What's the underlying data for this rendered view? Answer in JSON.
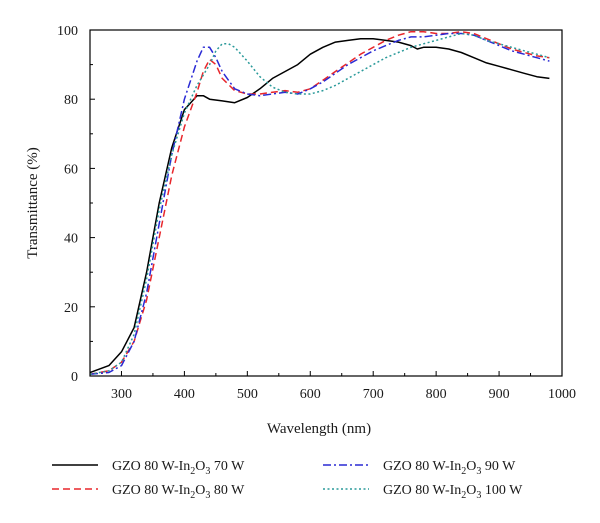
{
  "chart_data": {
    "type": "line",
    "xlabel": "Wavelength (nm)",
    "ylabel": "Transmittance (%)",
    "xlim": [
      250,
      1000
    ],
    "ylim": [
      0,
      100
    ],
    "x_ticks": [
      300,
      400,
      500,
      600,
      700,
      800,
      900,
      1000
    ],
    "y_ticks": [
      0,
      20,
      40,
      60,
      80,
      100
    ],
    "grid": false,
    "legend_placement": "bottom",
    "series": [
      {
        "name": "GZO 80 W-In2O3 70 W",
        "name_parts": {
          "prefix": "GZO 80 W-In",
          "sub1": "2",
          "mid": "O",
          "sub2": "3",
          "suffix": " 70 W"
        },
        "color": "#000000",
        "dash": "solid",
        "x": [
          250,
          280,
          300,
          320,
          340,
          360,
          380,
          400,
          410,
          420,
          430,
          440,
          460,
          480,
          500,
          520,
          540,
          560,
          580,
          600,
          620,
          640,
          660,
          680,
          700,
          720,
          740,
          760,
          770,
          780,
          800,
          820,
          840,
          860,
          880,
          900,
          920,
          940,
          960,
          980
        ],
        "y": [
          1,
          3,
          7,
          14,
          30,
          50,
          66,
          77,
          79,
          81,
          81,
          80,
          79.5,
          79,
          80.5,
          83,
          86,
          88,
          90,
          93,
          95,
          96.5,
          97,
          97.5,
          97.5,
          97,
          96.5,
          95.5,
          94.5,
          95,
          95,
          94.5,
          93.5,
          92,
          90.5,
          89.5,
          88.5,
          87.5,
          86.5,
          86
        ]
      },
      {
        "name": "GZO 80 W-In2O3 80 W",
        "name_parts": {
          "prefix": "GZO 80 W-In",
          "sub1": "2",
          "mid": "O",
          "sub2": "3",
          "suffix": " 80 W"
        },
        "color": "#e8262b",
        "dash": "dashed",
        "x": [
          250,
          280,
          300,
          320,
          340,
          360,
          380,
          400,
          420,
          430,
          440,
          450,
          460,
          480,
          500,
          520,
          540,
          560,
          580,
          600,
          620,
          640,
          660,
          680,
          700,
          720,
          740,
          760,
          780,
          800,
          820,
          840,
          860,
          880,
          900,
          920,
          940,
          960,
          980
        ],
        "y": [
          0.5,
          1.5,
          4,
          10,
          22,
          40,
          58,
          72,
          82,
          88,
          91.5,
          90,
          86,
          82.5,
          81.5,
          81.5,
          82,
          82.5,
          82,
          83,
          85.5,
          88,
          90.5,
          93,
          95,
          97,
          98.5,
          99.5,
          99.5,
          99,
          99,
          99.5,
          99,
          97.5,
          96,
          94.5,
          93.5,
          92.5,
          92
        ]
      },
      {
        "name": "GZO 80 W-In2O3 90 W",
        "name_parts": {
          "prefix": "GZO 80 W-In",
          "sub1": "2",
          "mid": "O",
          "sub2": "3",
          "suffix": " 90 W"
        },
        "color": "#2a2ad4",
        "dash": "dashdot",
        "x": [
          250,
          280,
          300,
          320,
          340,
          360,
          380,
          400,
          420,
          430,
          440,
          450,
          460,
          480,
          500,
          520,
          540,
          560,
          580,
          600,
          620,
          640,
          660,
          680,
          700,
          720,
          740,
          760,
          780,
          800,
          820,
          840,
          860,
          880,
          900,
          920,
          940,
          960,
          980
        ],
        "y": [
          0.5,
          1,
          3,
          10,
          24,
          44,
          64,
          80,
          91,
          95,
          95,
          92,
          88,
          83,
          81.5,
          81,
          81.5,
          82,
          81.5,
          83,
          85,
          87.5,
          90,
          92,
          94,
          95.5,
          97,
          98,
          98,
          98.5,
          99,
          99,
          98.5,
          97,
          95.5,
          94,
          93,
          92,
          91
        ]
      },
      {
        "name": "GZO 80 W-In2O3 100 W",
        "name_parts": {
          "prefix": "GZO 80 W-In",
          "sub1": "2",
          "mid": "O",
          "sub2": "3",
          "suffix": " 100 W"
        },
        "color": "#2a9a9a",
        "dash": "dotted",
        "x": [
          250,
          280,
          300,
          320,
          340,
          360,
          380,
          400,
          420,
          440,
          450,
          460,
          470,
          480,
          500,
          520,
          540,
          560,
          580,
          600,
          620,
          640,
          660,
          680,
          700,
          720,
          740,
          760,
          780,
          800,
          820,
          840,
          860,
          880,
          900,
          920,
          940,
          960,
          980
        ],
        "y": [
          0.5,
          1.5,
          4,
          12,
          28,
          48,
          64,
          76,
          84,
          90,
          94,
          96,
          96,
          95,
          91,
          86.5,
          83.5,
          82,
          81.5,
          81.5,
          82.5,
          84,
          86,
          88,
          90,
          92,
          93.5,
          95,
          96,
          97,
          98,
          99,
          98.5,
          97,
          96,
          95,
          94,
          93,
          92
        ]
      }
    ]
  }
}
